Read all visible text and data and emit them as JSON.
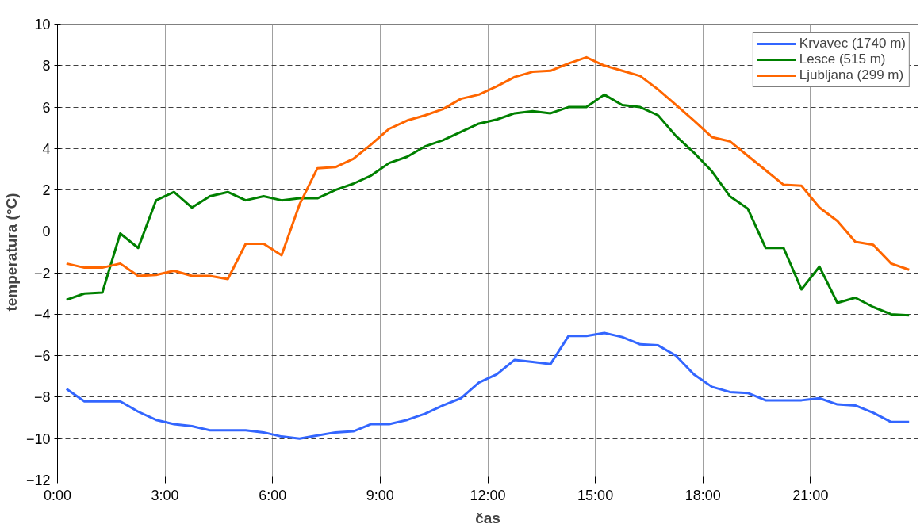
{
  "chart_data": {
    "type": "line",
    "xlabel": "čas",
    "ylabel": "temperatura (°C)",
    "x": [
      0.25,
      0.75,
      1.25,
      1.75,
      2.25,
      2.75,
      3.25,
      3.75,
      4.25,
      4.75,
      5.25,
      5.75,
      6.25,
      6.75,
      7.25,
      7.75,
      8.25,
      8.75,
      9.25,
      9.75,
      10.25,
      10.75,
      11.25,
      11.75,
      12.25,
      12.75,
      13.25,
      13.75,
      14.25,
      14.75,
      15.25,
      15.75,
      16.25,
      16.75,
      17.25,
      17.75,
      18.25,
      18.75,
      19.25,
      19.75,
      20.25,
      20.75,
      21.25,
      21.75,
      22.25,
      22.75,
      23.25,
      23.75
    ],
    "xlim": [
      0,
      24
    ],
    "xticks": [
      {
        "value": 0,
        "label": "0:00"
      },
      {
        "value": 3,
        "label": "3:00"
      },
      {
        "value": 6,
        "label": "6:00"
      },
      {
        "value": 9,
        "label": "9:00"
      },
      {
        "value": 12,
        "label": "12:00"
      },
      {
        "value": 15,
        "label": "15:00"
      },
      {
        "value": 18,
        "label": "18:00"
      },
      {
        "value": 21,
        "label": "21:00"
      }
    ],
    "ylim": [
      -12,
      10
    ],
    "yticks": [
      -12,
      -10,
      -8,
      -6,
      -4,
      -2,
      0,
      2,
      4,
      6,
      8,
      10
    ],
    "grid": true,
    "legend": "top right",
    "marker": "none",
    "line_style": "solid",
    "series": [
      {
        "name": "Krvavec (1740 m)",
        "color": "#3366ff",
        "values": [
          -7.6,
          -8.2,
          -8.2,
          -8.2,
          -8.7,
          -9.1,
          -9.3,
          -9.4,
          -9.6,
          -9.6,
          -9.6,
          -9.7,
          -9.9,
          -10.0,
          -9.85,
          -9.7,
          -9.65,
          -9.3,
          -9.3,
          -9.1,
          -8.8,
          -8.4,
          -8.05,
          -7.3,
          -6.9,
          -6.2,
          -6.3,
          -6.4,
          -5.05,
          -5.05,
          -4.9,
          -5.1,
          -5.45,
          -5.5,
          -6.0,
          -6.9,
          -7.5,
          -7.75,
          -7.8,
          -8.15,
          -8.15,
          -8.15,
          -8.05,
          -8.35,
          -8.4,
          -8.75,
          -9.2,
          -9.2
        ]
      },
      {
        "name": "Lesce (515 m)",
        "color": "#008000",
        "values": [
          -3.3,
          -3.0,
          -2.95,
          -0.1,
          -0.8,
          1.5,
          1.9,
          1.15,
          1.7,
          1.9,
          1.5,
          1.7,
          1.5,
          1.6,
          1.6,
          2.0,
          2.3,
          2.7,
          3.3,
          3.6,
          4.1,
          4.4,
          4.8,
          5.2,
          5.4,
          5.7,
          5.8,
          5.7,
          6.0,
          6.0,
          6.6,
          6.1,
          6.0,
          5.6,
          4.6,
          3.8,
          2.9,
          1.7,
          1.1,
          -0.8,
          -0.8,
          -2.8,
          -1.7,
          -3.45,
          -3.2,
          -3.65,
          -4.0,
          -4.05
        ]
      },
      {
        "name": "Ljubljana (299 m)",
        "color": "#ff6600",
        "values": [
          -1.55,
          -1.75,
          -1.75,
          -1.55,
          -2.15,
          -2.1,
          -1.9,
          -2.15,
          -2.15,
          -2.3,
          -0.6,
          -0.6,
          -1.15,
          1.3,
          3.05,
          3.1,
          3.5,
          4.2,
          4.95,
          5.35,
          5.6,
          5.9,
          6.4,
          6.6,
          7.0,
          7.45,
          7.7,
          7.75,
          8.1,
          8.4,
          8.0,
          7.75,
          7.5,
          6.85,
          6.1,
          5.35,
          4.55,
          4.35,
          3.65,
          2.95,
          2.25,
          2.2,
          1.15,
          0.5,
          -0.5,
          -0.65,
          -1.55,
          -1.85
        ]
      }
    ]
  }
}
